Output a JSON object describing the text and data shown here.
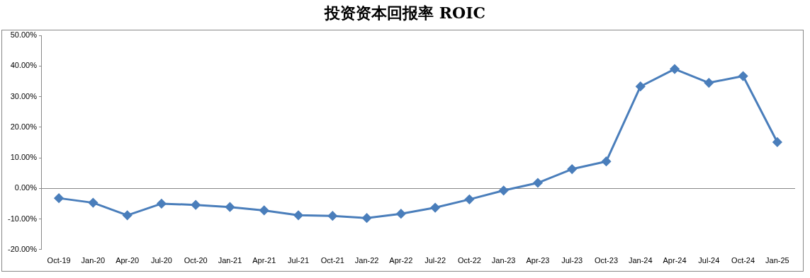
{
  "chart_data": {
    "type": "line",
    "title": "投资资本回报率 ROIC",
    "categories": [
      "Oct-19",
      "Jan-20",
      "Apr-20",
      "Jul-20",
      "Oct-20",
      "Jan-21",
      "Apr-21",
      "Jul-21",
      "Oct-21",
      "Jan-22",
      "Apr-22",
      "Jul-22",
      "Oct-22",
      "Jan-23",
      "Apr-23",
      "Jul-23",
      "Oct-23",
      "Jan-24",
      "Apr-24",
      "Jul-24",
      "Oct-24",
      "Jan-25"
    ],
    "series": [
      {
        "color": "#4a7ebb",
        "values": [
          -3.2,
          -4.7,
          -8.8,
          -5.0,
          -5.4,
          -6.1,
          -7.2,
          -8.8,
          -9.0,
          -9.7,
          -8.3,
          -6.3,
          -3.6,
          -0.7,
          1.8,
          6.3,
          8.8,
          33.3,
          39.0,
          34.5,
          36.7,
          15.1
        ]
      }
    ],
    "ylim": [
      -20,
      50
    ],
    "yticks": [
      {
        "value": -20,
        "label": "-20.00%"
      },
      {
        "value": -10,
        "label": "-10.00%"
      },
      {
        "value": 0,
        "label": "0.00%"
      },
      {
        "value": 10,
        "label": "10.00%"
      },
      {
        "value": 20,
        "label": "20.00%"
      },
      {
        "value": 30,
        "label": "30.00%"
      },
      {
        "value": 40,
        "label": "40.00%"
      },
      {
        "value": 50,
        "label": "50.00%"
      }
    ],
    "marker": "diamond"
  }
}
